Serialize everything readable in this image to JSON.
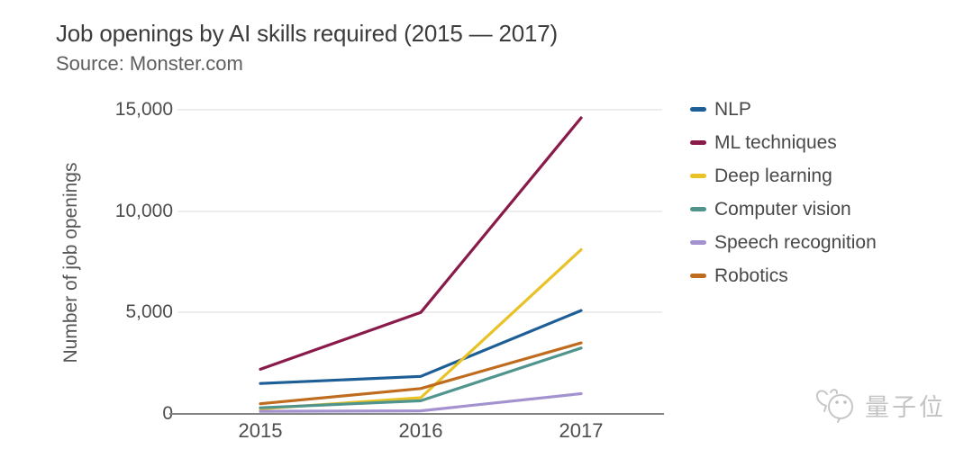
{
  "header": {
    "title": "Job openings by AI skills required (2015 — 2017)",
    "subtitle": "Source: Monster.com"
  },
  "chart_data": {
    "type": "line",
    "title": "Job openings by AI skills required (2015 — 2017)",
    "subtitle": "Source: Monster.com",
    "x": [
      "2015",
      "2016",
      "2017"
    ],
    "xlabel": "",
    "ylabel": "Number of job openings",
    "ylim": [
      0,
      15000
    ],
    "y_ticks_top_down": [
      "15,000",
      "10,000",
      "5,000",
      "0"
    ],
    "grid": "horizontal",
    "legend_position": "right",
    "series": [
      {
        "name": "NLP",
        "color": "#1e5e96",
        "values": [
          1500,
          1850,
          5100
        ]
      },
      {
        "name": "ML techniques",
        "color": "#8a1a4a",
        "values": [
          2200,
          5000,
          14600
        ]
      },
      {
        "name": "Deep learning",
        "color": "#e8c227",
        "values": [
          250,
          800,
          8100
        ]
      },
      {
        "name": "Computer vision",
        "color": "#4f958e",
        "values": [
          300,
          650,
          3250
        ]
      },
      {
        "name": "Speech recognition",
        "color": "#a392cf",
        "values": [
          130,
          150,
          1000
        ]
      },
      {
        "name": "Robotics",
        "color": "#bf6c1f",
        "values": [
          500,
          1250,
          3500
        ]
      }
    ]
  },
  "watermark": {
    "icon": "qbitai-mascot-icon",
    "text": "量子位"
  }
}
